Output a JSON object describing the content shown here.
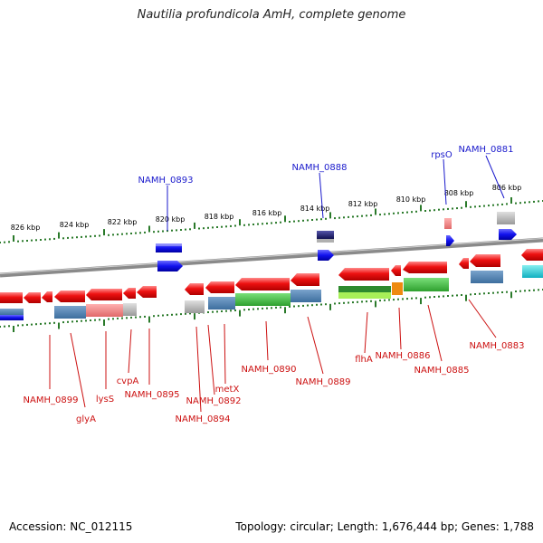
{
  "title": "Nautilia profundicola AmH, complete genome",
  "footer": {
    "accession": "Accession: NC_012115",
    "summary": "Topology: circular; Length: 1,676,444 bp; Genes: 1,788"
  },
  "ruler_ticks": [
    "826 kbp",
    "824 kbp",
    "822 kbp",
    "820 kbp",
    "818 kbp",
    "816 kbp",
    "814 kbp",
    "812 kbp",
    "810 kbp",
    "808 kbp",
    "806 kbp"
  ],
  "forward_labels": [
    "NAMH_0893",
    "NAMH_0888",
    "rpsO",
    "NAMH_0881"
  ],
  "reverse_labels": [
    "NAMH_0899",
    "glyA",
    "lysS",
    "cvpA",
    "NAMH_0895",
    "NAMH_0894",
    "NAMH_0892",
    "metX",
    "NAMH_0890",
    "NAMH_0889",
    "flhA",
    "NAMH_0886",
    "NAMH_0885",
    "NAMH_0883"
  ],
  "colors": {
    "forward_label": "#1a1acc",
    "reverse_label": "#cc1111",
    "gene_red": "#ee1111",
    "gene_blue": "#1111ee",
    "backbone": "#888888",
    "tick": "#2a7a2a"
  }
}
